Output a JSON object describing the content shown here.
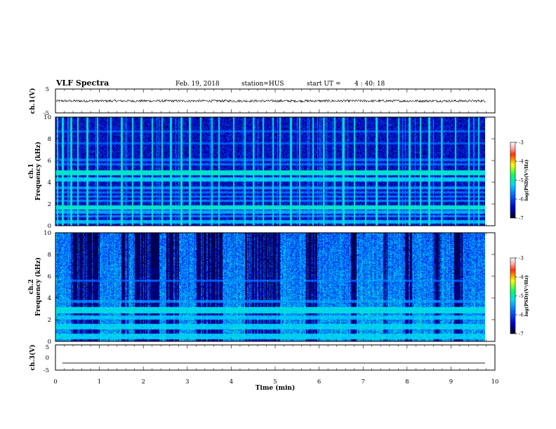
{
  "header": {
    "title": "VLF Spectra",
    "date": "Feb. 19, 2018",
    "station": "station=HUS",
    "start_label": "start  UT  =",
    "start_time": "4 : 40: 18"
  },
  "chart_data": [
    {
      "type": "line",
      "name": "ch1-waveform",
      "ylabel": "ch.1(V)",
      "ylim": [
        -5,
        5
      ],
      "yticks": [
        "5",
        "-5"
      ],
      "xlim": [
        0,
        10
      ],
      "baseline": 0,
      "trace": "noisy signal around 0 V, amplitude about 0.5 V, ending near 9.8 min"
    },
    {
      "type": "heatmap",
      "name": "ch1-spectrogram",
      "ylabel_top": "ch.1",
      "ylabel": "Frequency (kHz)",
      "ylim": [
        0,
        10
      ],
      "yticks": [
        "0",
        "2",
        "4",
        "6",
        "8",
        "10"
      ],
      "xlim": [
        0,
        10
      ],
      "data_end_min": 9.8,
      "colorbar": {
        "label": "log(PSD)(V²/Hz)",
        "ticks": [
          "-3",
          "-4",
          "-5",
          "-6",
          "-7"
        ],
        "range": [
          -7,
          -3
        ]
      },
      "background_level": -6.4,
      "bands_khz": [
        {
          "f": 0.4,
          "w": 0.15,
          "level": -5.4
        },
        {
          "f": 0.9,
          "w": 0.1,
          "level": -5.7
        },
        {
          "f": 1.3,
          "w": 0.15,
          "level": -5.5
        },
        {
          "f": 1.7,
          "w": 0.2,
          "level": -5.1
        },
        {
          "f": 2.3,
          "w": 0.1,
          "level": -5.7
        },
        {
          "f": 2.7,
          "w": 0.1,
          "level": -5.8
        },
        {
          "f": 3.1,
          "w": 0.1,
          "level": -5.8
        },
        {
          "f": 3.5,
          "w": 0.12,
          "level": -5.6
        },
        {
          "f": 4.3,
          "w": 0.2,
          "level": -5.3
        },
        {
          "f": 4.9,
          "w": 0.2,
          "level": -5.1
        },
        {
          "f": 5.7,
          "w": 0.1,
          "level": -5.8
        },
        {
          "f": 6.1,
          "w": 0.1,
          "level": -5.8
        },
        {
          "f": 7.6,
          "w": 0.08,
          "level": -5.9
        },
        {
          "f": 8.7,
          "w": 0.08,
          "level": -5.9
        }
      ],
      "burst_times_min": [
        0.04,
        0.16,
        0.35,
        0.5,
        0.72,
        0.95,
        1.25,
        1.5,
        1.75,
        1.95,
        2.2,
        2.42,
        2.62,
        2.86,
        3.05,
        3.3,
        3.55,
        3.72,
        4.05,
        4.3,
        4.5,
        4.72,
        4.95,
        5.1,
        5.35,
        5.55,
        5.85,
        6.1,
        6.35,
        6.55,
        6.8,
        7.05,
        7.3,
        7.55,
        7.8,
        8.05,
        8.3,
        8.5,
        8.78,
        9.1,
        9.4,
        9.62
      ]
    },
    {
      "type": "heatmap",
      "name": "ch2-spectrogram",
      "ylabel_top": "ch.2",
      "ylabel": "Frequency (kHz)",
      "ylim": [
        0,
        10
      ],
      "yticks": [
        "0",
        "2",
        "4",
        "6",
        "8",
        "10"
      ],
      "xlim": [
        0,
        10
      ],
      "data_end_min": 9.8,
      "colorbar": {
        "label": "log(PSD)(V²/Hz)",
        "ticks": [
          "-3",
          "-4",
          "-5",
          "-6",
          "-7"
        ],
        "range": [
          -7,
          -3
        ]
      },
      "background_level": -6.6,
      "bands_khz": [
        {
          "f": 0.5,
          "w": 0.25,
          "level": -5.3
        },
        {
          "f": 1.4,
          "w": 0.25,
          "level": -5.3
        },
        {
          "f": 2.2,
          "w": 0.2,
          "level": -5.4
        },
        {
          "f": 2.9,
          "w": 0.3,
          "level": -5.2
        },
        {
          "f": 3.7,
          "w": 0.12,
          "level": -5.7
        },
        {
          "f": 5.6,
          "w": 0.1,
          "level": -5.9
        }
      ],
      "bright_intervals_min": [
        [
          0.0,
          0.35
        ],
        [
          1.0,
          1.5
        ],
        [
          1.65,
          1.8
        ],
        [
          2.35,
          2.5
        ],
        [
          2.8,
          3.2
        ],
        [
          3.8,
          4.3
        ],
        [
          5.1,
          5.7
        ],
        [
          5.95,
          6.7
        ],
        [
          6.85,
          7.45
        ],
        [
          7.55,
          7.95
        ],
        [
          8.1,
          8.6
        ],
        [
          8.75,
          9.05
        ],
        [
          9.25,
          9.8
        ]
      ]
    },
    {
      "type": "line",
      "name": "ch3-waveform",
      "ylabel": "ch.3(V)",
      "ylim": [
        -5,
        5
      ],
      "yticks": [
        "5",
        "0",
        "-5"
      ],
      "xlim": [
        0,
        10
      ],
      "baseline": -2.2,
      "trace": "flat line near -2.2 V"
    }
  ],
  "xaxis": {
    "label": "Time (min)",
    "ticks": [
      "0",
      "1",
      "2",
      "3",
      "4",
      "5",
      "6",
      "7",
      "8",
      "9",
      "10"
    ],
    "range": [
      0,
      10
    ]
  }
}
